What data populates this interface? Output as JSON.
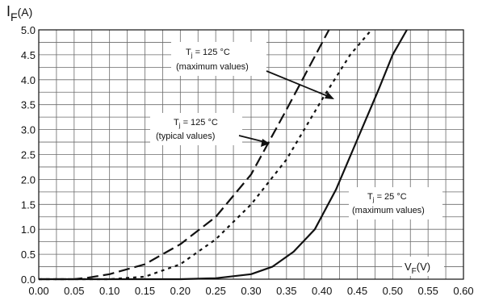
{
  "chart_data": {
    "type": "line",
    "x_axis": {
      "unit_label": "V",
      "unit_sub": "F",
      "unit_suffix": "(V)",
      "range": [
        0,
        0.6
      ],
      "ticks": [
        "0.00",
        "0.05",
        "0.10",
        "0.15",
        "0.20",
        "0.25",
        "0.30",
        "0.35",
        "0.40",
        "0.45",
        "0.50",
        "0.55",
        "0.60"
      ],
      "minor_step": 0.025
    },
    "y_axis": {
      "unit_label": "I",
      "unit_sub": "F",
      "unit_suffix": "(A)",
      "range": [
        0,
        5
      ],
      "ticks": [
        "0.0",
        "0.5",
        "1.0",
        "1.5",
        "2.0",
        "2.5",
        "3.0",
        "3.5",
        "4.0",
        "4.5",
        "5.0"
      ],
      "minor_step": 0.25
    },
    "grid": true,
    "series": [
      {
        "name": "Tj = 125 °C (maximum values)",
        "style": "long-dash",
        "color": "#111111",
        "points": [
          [
            0.0,
            0.0
          ],
          [
            0.05,
            0.0
          ],
          [
            0.07,
            0.03
          ],
          [
            0.1,
            0.1
          ],
          [
            0.15,
            0.3
          ],
          [
            0.2,
            0.7
          ],
          [
            0.25,
            1.25
          ],
          [
            0.3,
            2.1
          ],
          [
            0.35,
            3.4
          ],
          [
            0.38,
            4.2
          ],
          [
            0.41,
            5.0
          ]
        ]
      },
      {
        "name": "Tj = 125 °C (typical values)",
        "style": "short-dash",
        "color": "#111111",
        "points": [
          [
            0.0,
            0.0
          ],
          [
            0.1,
            0.0
          ],
          [
            0.15,
            0.05
          ],
          [
            0.2,
            0.3
          ],
          [
            0.25,
            0.8
          ],
          [
            0.3,
            1.5
          ],
          [
            0.35,
            2.4
          ],
          [
            0.4,
            3.6
          ],
          [
            0.44,
            4.5
          ],
          [
            0.47,
            5.0
          ]
        ]
      },
      {
        "name": "Tj = 25 °C (maximum values)",
        "style": "solid",
        "color": "#111111",
        "points": [
          [
            0.0,
            0.0
          ],
          [
            0.2,
            0.0
          ],
          [
            0.25,
            0.02
          ],
          [
            0.3,
            0.1
          ],
          [
            0.33,
            0.25
          ],
          [
            0.36,
            0.55
          ],
          [
            0.39,
            1.0
          ],
          [
            0.42,
            1.8
          ],
          [
            0.45,
            2.8
          ],
          [
            0.48,
            3.8
          ],
          [
            0.5,
            4.5
          ],
          [
            0.52,
            5.0
          ]
        ]
      }
    ],
    "annotations": [
      {
        "line1_main": "T",
        "line1_sub": "j",
        "line1_rest": " = 125 °C",
        "line2": "(maximum values)"
      },
      {
        "line1_main": "T",
        "line1_sub": "j",
        "line1_rest": " = 125 °C",
        "line2": "(typical values)"
      },
      {
        "line1_main": "T",
        "line1_sub": "j",
        "line1_rest": " = 25 °C",
        "line2": "(maximum values)"
      }
    ]
  }
}
